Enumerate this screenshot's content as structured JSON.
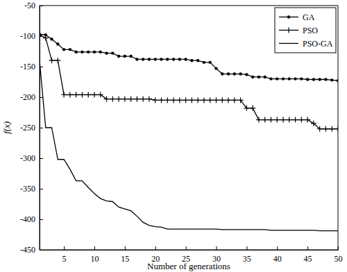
{
  "chart_data": {
    "type": "line",
    "x_label": "Number of generations",
    "y_label": "f(x)",
    "x": [
      1,
      2,
      3,
      4,
      5,
      6,
      7,
      8,
      9,
      10,
      11,
      12,
      13,
      14,
      15,
      16,
      17,
      18,
      19,
      20,
      21,
      22,
      23,
      24,
      25,
      26,
      27,
      28,
      29,
      30,
      31,
      32,
      33,
      34,
      35,
      36,
      37,
      38,
      39,
      40,
      41,
      42,
      43,
      44,
      45,
      46,
      47,
      48,
      49,
      50
    ],
    "xlim": [
      1,
      50
    ],
    "xticks": [
      5,
      10,
      15,
      20,
      25,
      30,
      35,
      40,
      45,
      50
    ],
    "ylim": [
      -450,
      -50
    ],
    "yticks": [
      -450,
      -400,
      -350,
      -300,
      -250,
      -200,
      -150,
      -100,
      -50
    ],
    "grid": false,
    "legend": "top-right",
    "series": [
      {
        "name": "GA",
        "color": "#000000",
        "marker": "dot",
        "line_style": "solid",
        "values": [
          -97,
          -98,
          -105,
          -113,
          -122,
          -122,
          -126,
          -126,
          -126,
          -126,
          -126,
          -128,
          -128,
          -133,
          -133,
          -133,
          -138,
          -138,
          -138,
          -138,
          -138,
          -138,
          -138,
          -138,
          -138,
          -140,
          -140,
          -143,
          -143,
          -153,
          -162,
          -162,
          -162,
          -162,
          -163,
          -167,
          -167,
          -167,
          -170,
          -170,
          -170,
          -170,
          -170,
          -170,
          -171,
          -171,
          -171,
          -171,
          -172,
          -173
        ]
      },
      {
        "name": "PSO",
        "color": "#000000",
        "marker": "plus",
        "line_style": "solid",
        "values": [
          -98,
          -103,
          -140,
          -140,
          -196,
          -196,
          -196,
          -196,
          -196,
          -196,
          -196,
          -203,
          -203,
          -203,
          -203,
          -203,
          -203,
          -203,
          -203,
          -205,
          -205,
          -205,
          -205,
          -205,
          -205,
          -205,
          -205,
          -205,
          -205,
          -205,
          -205,
          -205,
          -205,
          -205,
          -218,
          -218,
          -237,
          -237,
          -237,
          -237,
          -237,
          -237,
          -237,
          -237,
          -237,
          -243,
          -252,
          -252,
          -252,
          -252
        ]
      },
      {
        "name": "PSO-GA",
        "color": "#000000",
        "marker": "none",
        "line_style": "solid",
        "values": [
          -140,
          -250,
          -250,
          -302,
          -302,
          -318,
          -337,
          -337,
          -348,
          -358,
          -366,
          -370,
          -371,
          -380,
          -383,
          -386,
          -395,
          -405,
          -410,
          -412,
          -413,
          -416,
          -416,
          -416,
          -416,
          -416,
          -416,
          -416,
          -416,
          -416,
          -417,
          -417,
          -417,
          -417,
          -417,
          -417,
          -417,
          -417,
          -418,
          -418,
          -418,
          -418,
          -418,
          -418,
          -418,
          -418,
          -419,
          -419,
          -419,
          -419
        ]
      }
    ]
  }
}
